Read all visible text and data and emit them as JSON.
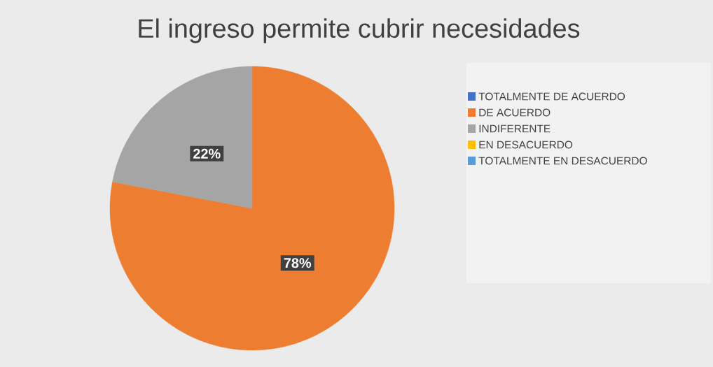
{
  "chart_data": {
    "type": "pie",
    "title": "El ingreso permite cubrir necesidades",
    "categories": [
      "TOTALMENTE DE ACUERDO",
      "DE ACUERDO",
      "INDIFERENTE",
      "EN DESACUERDO",
      "TOTALMENTE EN DESACUERDO"
    ],
    "values": [
      0,
      78,
      22,
      0,
      0
    ],
    "colors": [
      "#4472c4",
      "#ed7d31",
      "#a5a5a5",
      "#ffc000",
      "#5b9bd5"
    ],
    "value_labels": [
      null,
      "78%",
      "22%",
      null,
      null
    ],
    "legend": "right"
  }
}
